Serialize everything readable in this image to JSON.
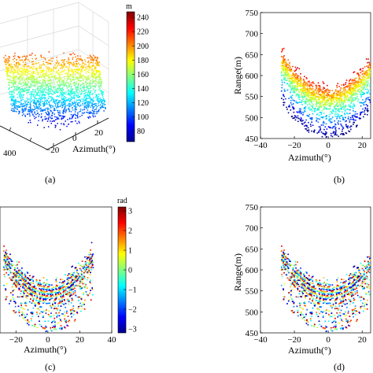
{
  "chart_data": [
    {
      "panel": "(a)",
      "type": "scatter",
      "xlabel": "Azimuth(°)",
      "x_ticks": [
        "−20",
        "0",
        "20"
      ],
      "y_ticks": [
        "400"
      ],
      "colorbar": {
        "unit": "m",
        "ticks": [
          "240",
          "220",
          "200",
          "180",
          "160",
          "140",
          "120",
          "100",
          "80"
        ],
        "range": [
          65,
          248
        ]
      }
    },
    {
      "panel": "(b)",
      "type": "scatter",
      "xlabel": "Azimuth(°)",
      "ylabel": "Range(m)",
      "xlim": [
        -40,
        25
      ],
      "ylim": [
        450,
        750
      ],
      "x_ticks": [
        "−40",
        "−20",
        "0",
        "20"
      ],
      "y_ticks": [
        "750",
        "700",
        "650",
        "600",
        "550",
        "500",
        "450"
      ]
    },
    {
      "panel": "(c)",
      "type": "scatter",
      "xlabel": "Azimuth(°)",
      "x_ticks": [
        "−20",
        "0",
        "20",
        "40"
      ],
      "colorbar": {
        "unit": "rad",
        "ticks": [
          "3",
          "2",
          "1",
          "0",
          "−1",
          "−2",
          "−3"
        ],
        "range": [
          -3.2,
          3.2
        ]
      }
    },
    {
      "panel": "(d)",
      "type": "scatter",
      "xlabel": "Azimuth(°)",
      "ylabel": "Range(m)",
      "xlim": [
        -40,
        25
      ],
      "ylim": [
        450,
        750
      ],
      "x_ticks": [
        "−40",
        "−20",
        "0",
        "20"
      ],
      "y_ticks": [
        "750",
        "700",
        "650",
        "600",
        "550",
        "500",
        "450"
      ]
    }
  ],
  "panel_labels": [
    "(a)",
    "(b)",
    "(c)",
    "(d)"
  ]
}
